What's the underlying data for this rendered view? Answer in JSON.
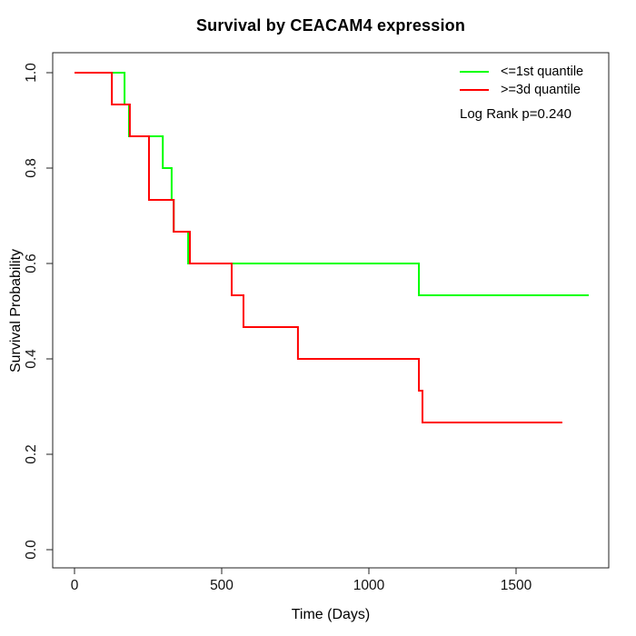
{
  "chart_data": {
    "type": "line",
    "subtype": "kaplan-meier-step",
    "title": "Survival by CEACAM4 expression",
    "xlabel": "Time (Days)",
    "ylabel": "Survival Probability",
    "xlim": [
      0,
      1815
    ],
    "ylim": [
      0,
      1
    ],
    "x_ticks": [
      0,
      500,
      1000,
      1500
    ],
    "x_tick_labels": [
      "0",
      "500",
      "1000",
      "1500"
    ],
    "y_ticks": [
      0.0,
      0.2,
      0.4,
      0.6,
      0.8,
      1.0
    ],
    "y_tick_labels": [
      "0.0",
      "0.2",
      "0.4",
      "0.6",
      "0.8",
      "1.0"
    ],
    "grid": false,
    "legend_position": "top-right",
    "annotation": "Log Rank p=0.240",
    "axis_color": "#222222",
    "series": [
      {
        "name": "<=1st quantile",
        "color": "#00ff00",
        "steps": [
          [
            0,
            1.0
          ],
          [
            170,
            0.9333
          ],
          [
            185,
            0.8667
          ],
          [
            300,
            0.8
          ],
          [
            330,
            0.7333
          ],
          [
            337,
            0.6667
          ],
          [
            386,
            0.6
          ],
          [
            1170,
            0.5333
          ]
        ],
        "end_time": 1747
      },
      {
        "name": ">=3d quantile",
        "color": "#ff0000",
        "steps": [
          [
            0,
            1.0
          ],
          [
            127,
            0.9333
          ],
          [
            188,
            0.8667
          ],
          [
            253,
            0.7333
          ],
          [
            337,
            0.6667
          ],
          [
            392,
            0.6
          ],
          [
            534,
            0.5333
          ],
          [
            574,
            0.4667
          ],
          [
            759,
            0.4
          ],
          [
            1170,
            0.3333
          ],
          [
            1182,
            0.2667
          ]
        ],
        "end_time": 1657
      }
    ]
  }
}
